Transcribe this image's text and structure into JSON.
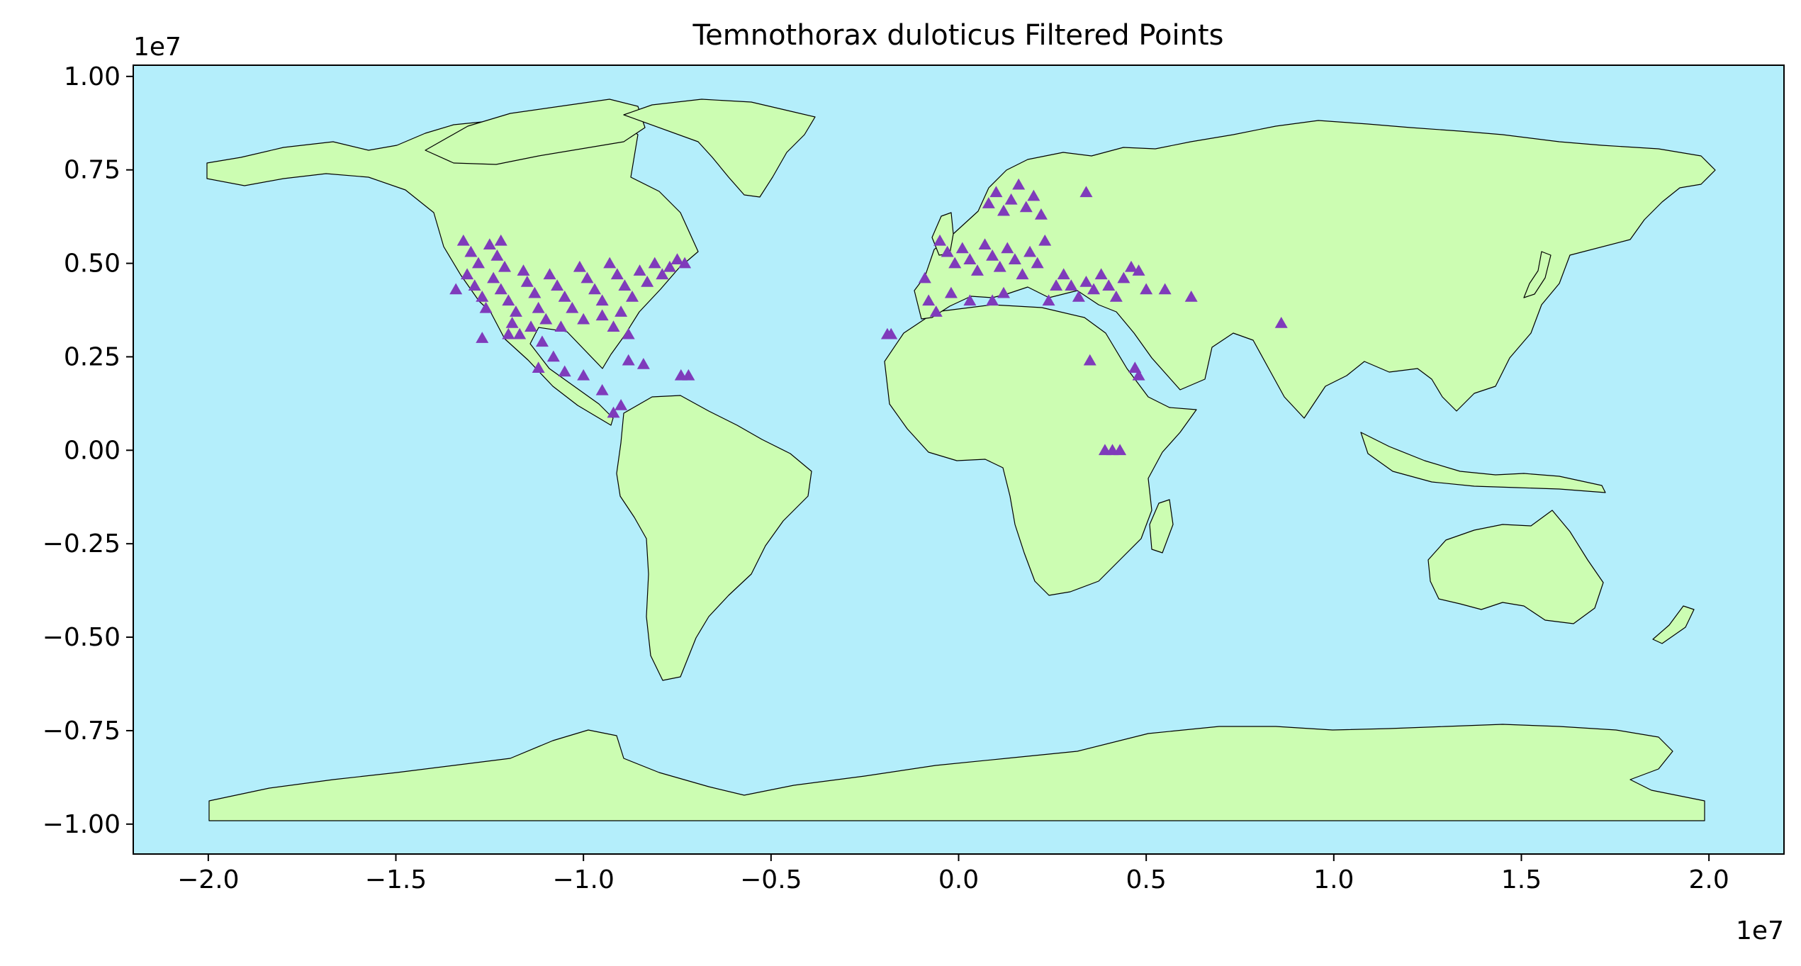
{
  "chart_data": {
    "type": "scatter",
    "title": "Temnothorax duloticus Filtered Points",
    "x_offset_label": "1e7",
    "y_offset_label": "1e7",
    "xlim": [
      -2.2,
      2.2
    ],
    "ylim": [
      -1.08,
      1.03
    ],
    "x_ticks": [
      -2.0,
      -1.5,
      -1.0,
      -0.5,
      0.0,
      0.5,
      1.0,
      1.5,
      2.0
    ],
    "x_tick_labels": [
      "−2.0",
      "−1.5",
      "−1.0",
      "−0.5",
      "0.0",
      "0.5",
      "1.0",
      "1.5",
      "2.0"
    ],
    "y_ticks": [
      1.0,
      0.75,
      0.5,
      0.25,
      0.0,
      -0.25,
      -0.5,
      -0.75,
      -1.0
    ],
    "y_tick_labels": [
      "1.00",
      "0.75",
      "0.50",
      "0.25",
      "0.00",
      "−0.25",
      "−0.50",
      "−0.75",
      "−1.00"
    ],
    "grid": false,
    "colors": {
      "ocean": "#b4eefb",
      "land": "#ccfdb2",
      "border": "#000000",
      "marker": "#7f3bbb"
    },
    "marker_shape": "triangle",
    "series": [
      {
        "values": [
          [
            -1.32,
            0.56
          ],
          [
            -1.3,
            0.53
          ],
          [
            -1.28,
            0.5
          ],
          [
            -1.31,
            0.47
          ],
          [
            -1.29,
            0.44
          ],
          [
            -1.27,
            0.41
          ],
          [
            -1.25,
            0.55
          ],
          [
            -1.23,
            0.52
          ],
          [
            -1.21,
            0.49
          ],
          [
            -1.24,
            0.46
          ],
          [
            -1.22,
            0.43
          ],
          [
            -1.2,
            0.4
          ],
          [
            -1.18,
            0.37
          ],
          [
            -1.26,
            0.38
          ],
          [
            -1.19,
            0.34
          ],
          [
            -1.17,
            0.31
          ],
          [
            -1.15,
            0.45
          ],
          [
            -1.13,
            0.42
          ],
          [
            -1.16,
            0.48
          ],
          [
            -1.12,
            0.38
          ],
          [
            -1.1,
            0.35
          ],
          [
            -1.14,
            0.33
          ],
          [
            -1.09,
            0.47
          ],
          [
            -1.07,
            0.44
          ],
          [
            -1.05,
            0.41
          ],
          [
            -1.03,
            0.38
          ],
          [
            -1.01,
            0.49
          ],
          [
            -0.99,
            0.46
          ],
          [
            -0.97,
            0.43
          ],
          [
            -0.95,
            0.4
          ],
          [
            -0.93,
            0.5
          ],
          [
            -0.91,
            0.47
          ],
          [
            -0.89,
            0.44
          ],
          [
            -0.87,
            0.41
          ],
          [
            -0.85,
            0.48
          ],
          [
            -0.83,
            0.45
          ],
          [
            -0.81,
            0.5
          ],
          [
            -0.79,
            0.47
          ],
          [
            -0.77,
            0.49
          ],
          [
            -0.75,
            0.51
          ],
          [
            -0.73,
            0.5
          ],
          [
            -0.95,
            0.36
          ],
          [
            -0.92,
            0.33
          ],
          [
            -0.9,
            0.37
          ],
          [
            -0.88,
            0.31
          ],
          [
            -1.34,
            0.43
          ],
          [
            -1.22,
            0.56
          ],
          [
            -1.06,
            0.33
          ],
          [
            -1.0,
            0.35
          ],
          [
            -1.11,
            0.29
          ],
          [
            -1.08,
            0.25
          ],
          [
            -1.05,
            0.21
          ],
          [
            -1.12,
            0.22
          ],
          [
            -1.0,
            0.2
          ],
          [
            -0.95,
            0.16
          ],
          [
            -0.9,
            0.12
          ],
          [
            -0.92,
            0.1
          ],
          [
            -0.88,
            0.24
          ],
          [
            -0.84,
            0.23
          ],
          [
            -0.72,
            0.2
          ],
          [
            -0.74,
            0.2
          ],
          [
            -1.2,
            0.31
          ],
          [
            -1.27,
            0.3
          ],
          [
            -0.05,
            0.56
          ],
          [
            -0.03,
            0.53
          ],
          [
            -0.01,
            0.5
          ],
          [
            0.01,
            0.54
          ],
          [
            0.03,
            0.51
          ],
          [
            0.05,
            0.48
          ],
          [
            0.07,
            0.55
          ],
          [
            0.09,
            0.52
          ],
          [
            0.11,
            0.49
          ],
          [
            0.13,
            0.54
          ],
          [
            0.15,
            0.51
          ],
          [
            0.17,
            0.47
          ],
          [
            0.19,
            0.53
          ],
          [
            0.21,
            0.5
          ],
          [
            0.23,
            0.56
          ],
          [
            0.08,
            0.66
          ],
          [
            0.1,
            0.69
          ],
          [
            0.12,
            0.64
          ],
          [
            0.14,
            0.67
          ],
          [
            0.16,
            0.71
          ],
          [
            0.18,
            0.65
          ],
          [
            0.2,
            0.68
          ],
          [
            0.22,
            0.63
          ],
          [
            0.34,
            0.69
          ],
          [
            0.03,
            0.4
          ],
          [
            0.09,
            0.4
          ],
          [
            0.12,
            0.42
          ],
          [
            -0.08,
            0.4
          ],
          [
            -0.06,
            0.37
          ],
          [
            -0.09,
            0.46
          ],
          [
            0.28,
            0.47
          ],
          [
            0.3,
            0.44
          ],
          [
            0.32,
            0.41
          ],
          [
            0.34,
            0.45
          ],
          [
            0.36,
            0.43
          ],
          [
            0.38,
            0.47
          ],
          [
            0.4,
            0.44
          ],
          [
            0.42,
            0.41
          ],
          [
            0.44,
            0.46
          ],
          [
            0.46,
            0.49
          ],
          [
            0.48,
            0.48
          ],
          [
            0.5,
            0.43
          ],
          [
            0.55,
            0.43
          ],
          [
            0.62,
            0.41
          ],
          [
            0.26,
            0.44
          ],
          [
            0.24,
            0.4
          ],
          [
            -0.02,
            0.42
          ],
          [
            -0.18,
            0.31
          ],
          [
            -0.19,
            0.31
          ],
          [
            0.35,
            0.24
          ],
          [
            0.47,
            0.22
          ],
          [
            0.48,
            0.2
          ],
          [
            0.39,
            0.0
          ],
          [
            0.41,
            0.0
          ],
          [
            0.43,
            0.0
          ],
          [
            0.86,
            0.34
          ]
        ]
      }
    ]
  }
}
